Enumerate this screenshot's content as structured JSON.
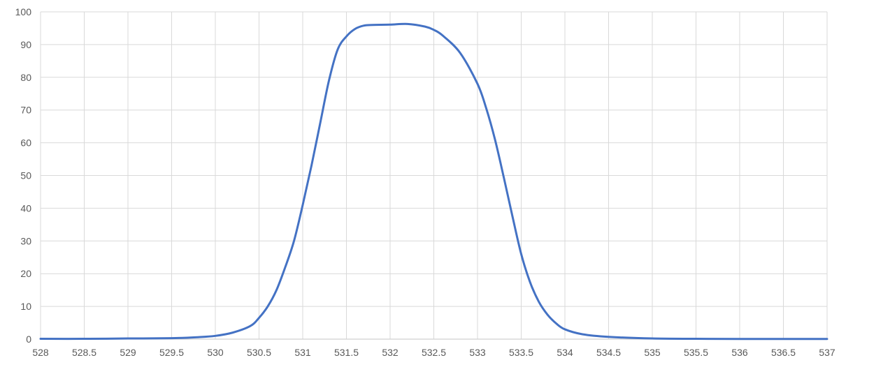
{
  "chart_data": {
    "type": "line",
    "title": "",
    "xlabel": "",
    "ylabel": "",
    "xlim": [
      528,
      537
    ],
    "ylim": [
      0,
      100
    ],
    "x_ticks": [
      "528",
      "528.5",
      "529",
      "529.5",
      "530",
      "530.5",
      "531",
      "531.5",
      "532",
      "532.5",
      "533",
      "533.5",
      "534",
      "534.5",
      "535",
      "535.5",
      "536",
      "536.5",
      "537"
    ],
    "y_ticks": [
      "0",
      "10",
      "20",
      "30",
      "40",
      "50",
      "60",
      "70",
      "80",
      "90",
      "100"
    ],
    "grid": true,
    "legend": "none",
    "colors": {
      "line": "#4472C4",
      "grid": "#D9D9D9",
      "tick_text": "#595959"
    },
    "series": [
      {
        "x": [
          528,
          528.5,
          529,
          529.5,
          529.8,
          530,
          530.2,
          530.4,
          530.5,
          530.6,
          530.7,
          530.8,
          530.9,
          531,
          531.1,
          531.2,
          531.3,
          531.4,
          531.5,
          531.6,
          531.7,
          531.8,
          532,
          532.2,
          532.4,
          532.5,
          532.6,
          532.8,
          533,
          533.1,
          533.2,
          533.3,
          533.4,
          533.5,
          533.6,
          533.7,
          533.8,
          533.9,
          534,
          534.2,
          534.5,
          535,
          535.5,
          536,
          537
        ],
        "y": [
          0.1,
          0.1,
          0.2,
          0.3,
          0.6,
          1,
          2,
          4,
          6.5,
          10,
          15,
          22,
          30,
          41,
          53,
          66,
          79,
          88.5,
          92.5,
          94.8,
          95.8,
          96,
          96.1,
          96.3,
          95.5,
          94.5,
          92.8,
          87.5,
          78,
          70.5,
          61,
          49.5,
          37.5,
          26,
          17.5,
          11.5,
          7.5,
          4.8,
          3,
          1.5,
          0.7,
          0.2,
          0.1,
          0.05,
          0.05
        ]
      }
    ]
  }
}
